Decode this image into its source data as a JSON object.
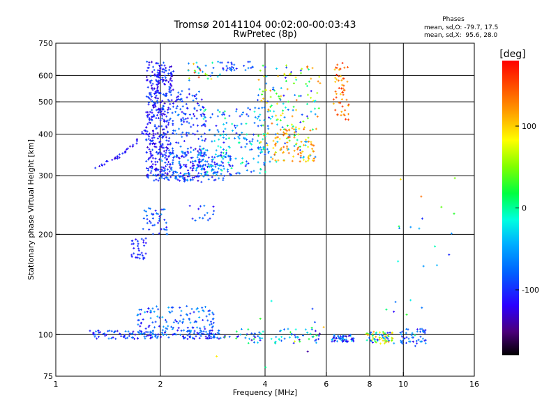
{
  "chart_data": {
    "type": "scatter",
    "title": "Tromsø 20141104 00:02:00-00:03:43",
    "subtitle": "RwPretec (8p)",
    "xlabel": "Frequency [MHz]",
    "ylabel": "Stationary phase Virtual Height [km]",
    "x_scale": "log",
    "y_scale": "log",
    "xlim": [
      1,
      16
    ],
    "ylim": [
      75,
      750
    ],
    "x_ticks": [
      1,
      2,
      4,
      6,
      8,
      10,
      16
    ],
    "y_ticks": [
      75,
      100,
      200,
      300,
      400,
      500,
      600,
      750
    ],
    "x_gridlines": [
      2,
      4,
      6,
      8,
      10
    ],
    "y_gridlines": [
      100,
      200,
      300,
      400,
      500,
      600
    ],
    "grid": true,
    "stats": {
      "heading": "Phases",
      "line_o": "mean, sd,O: -79.7, 17.5",
      "line_x": "mean, sd,X:  95.6, 28.0"
    },
    "colorbar": {
      "label": "[deg]",
      "range": [
        -180,
        180
      ],
      "ticks": [
        100,
        0,
        -100
      ],
      "colormap": "rainbow"
    },
    "series": [
      {
        "traces": [
          {
            "kind": "curve",
            "n": 70,
            "pts": [
              [
                1.3,
                318
              ],
              [
                1.5,
                340
              ],
              [
                1.7,
                375
              ],
              [
                1.85,
                420
              ],
              [
                1.92,
                480
              ],
              [
                1.96,
                560
              ],
              [
                2.0,
                640
              ]
            ],
            "phase": [
              -130,
              -95
            ],
            "jx": 0.012,
            "jy": 0.012
          },
          {
            "kind": "blob",
            "n": 380,
            "x": [
              1.82,
              2.18
            ],
            "y": [
              290,
              660
            ],
            "phase": [
              -135,
              -80
            ]
          },
          {
            "kind": "blob",
            "n": 160,
            "x": [
              2.2,
              2.7
            ],
            "y": [
              285,
              560
            ],
            "phase": [
              -130,
              -60
            ]
          },
          {
            "kind": "blob",
            "n": 170,
            "x": [
              2.0,
              3.2
            ],
            "y": [
              290,
              355
            ],
            "phase": [
              -130,
              -40
            ]
          },
          {
            "kind": "blob",
            "n": 180,
            "x": [
              2.6,
              4.1
            ],
            "y": [
              300,
              480
            ],
            "phase": [
              -115,
              10
            ]
          },
          {
            "kind": "blob",
            "n": 30,
            "x": [
              2.4,
              3.0
            ],
            "y": [
              580,
              660
            ],
            "phase": [
              -120,
              160
            ]
          },
          {
            "kind": "blob",
            "n": 28,
            "x": [
              3.0,
              3.7
            ],
            "y": [
              620,
              660
            ],
            "phase": [
              -120,
              -60
            ]
          },
          {
            "kind": "blob",
            "n": 180,
            "x": [
              3.8,
              5.8
            ],
            "y": [
              330,
              650
            ],
            "phase": [
              -120,
              140
            ]
          },
          {
            "kind": "blob",
            "n": 70,
            "x": [
              4.2,
              5.6
            ],
            "y": [
              330,
              420
            ],
            "phase": [
              90,
              150
            ]
          },
          {
            "kind": "blob",
            "n": 55,
            "x": [
              6.3,
              7.0
            ],
            "y": [
              440,
              660
            ],
            "phase": [
              100,
              170
            ]
          },
          {
            "kind": "blob",
            "n": 40,
            "x": [
              1.78,
              2.1
            ],
            "y": [
              200,
              240
            ],
            "phase": [
              -120,
              -60
            ]
          },
          {
            "kind": "blob",
            "n": 15,
            "x": [
              2.4,
              2.85
            ],
            "y": [
              218,
              245
            ],
            "phase": [
              -120,
              -60
            ]
          },
          {
            "kind": "blob",
            "n": 32,
            "x": [
              1.65,
              1.82
            ],
            "y": [
              168,
              195
            ],
            "phase": [
              -120,
              -90
            ]
          },
          {
            "kind": "blob",
            "n": 150,
            "x": [
              1.25,
              3.2
            ],
            "y": [
              97,
              103
            ],
            "phase": [
              -130,
              -60
            ]
          },
          {
            "kind": "blob",
            "n": 130,
            "x": [
              1.7,
              2.9
            ],
            "y": [
              100,
              122
            ],
            "phase": [
              -120,
              -40
            ]
          },
          {
            "kind": "blob",
            "n": 70,
            "x": [
              3.2,
              5.8
            ],
            "y": [
              94,
              104
            ],
            "phase": [
              -140,
              30
            ]
          },
          {
            "kind": "blob",
            "n": 55,
            "x": [
              6.2,
              7.2
            ],
            "y": [
              95,
              100
            ],
            "phase": [
              -140,
              -20
            ]
          },
          {
            "kind": "blob",
            "n": 65,
            "x": [
              7.8,
              9.4
            ],
            "y": [
              94,
              102
            ],
            "phase": [
              -120,
              140
            ]
          },
          {
            "kind": "blob",
            "n": 45,
            "x": [
              9.8,
              11.6
            ],
            "y": [
              94,
              104
            ],
            "phase": [
              -130,
              -40
            ]
          },
          {
            "kind": "blob",
            "n": 22,
            "x": [
              2.9,
              11.5
            ],
            "y": [
              78,
              130
            ],
            "phase": [
              -150,
              120
            ]
          },
          {
            "kind": "blob",
            "n": 16,
            "x": [
              9.5,
              15.0
            ],
            "y": [
              160,
              300
            ],
            "phase": [
              -120,
              140
            ]
          }
        ]
      }
    ]
  }
}
